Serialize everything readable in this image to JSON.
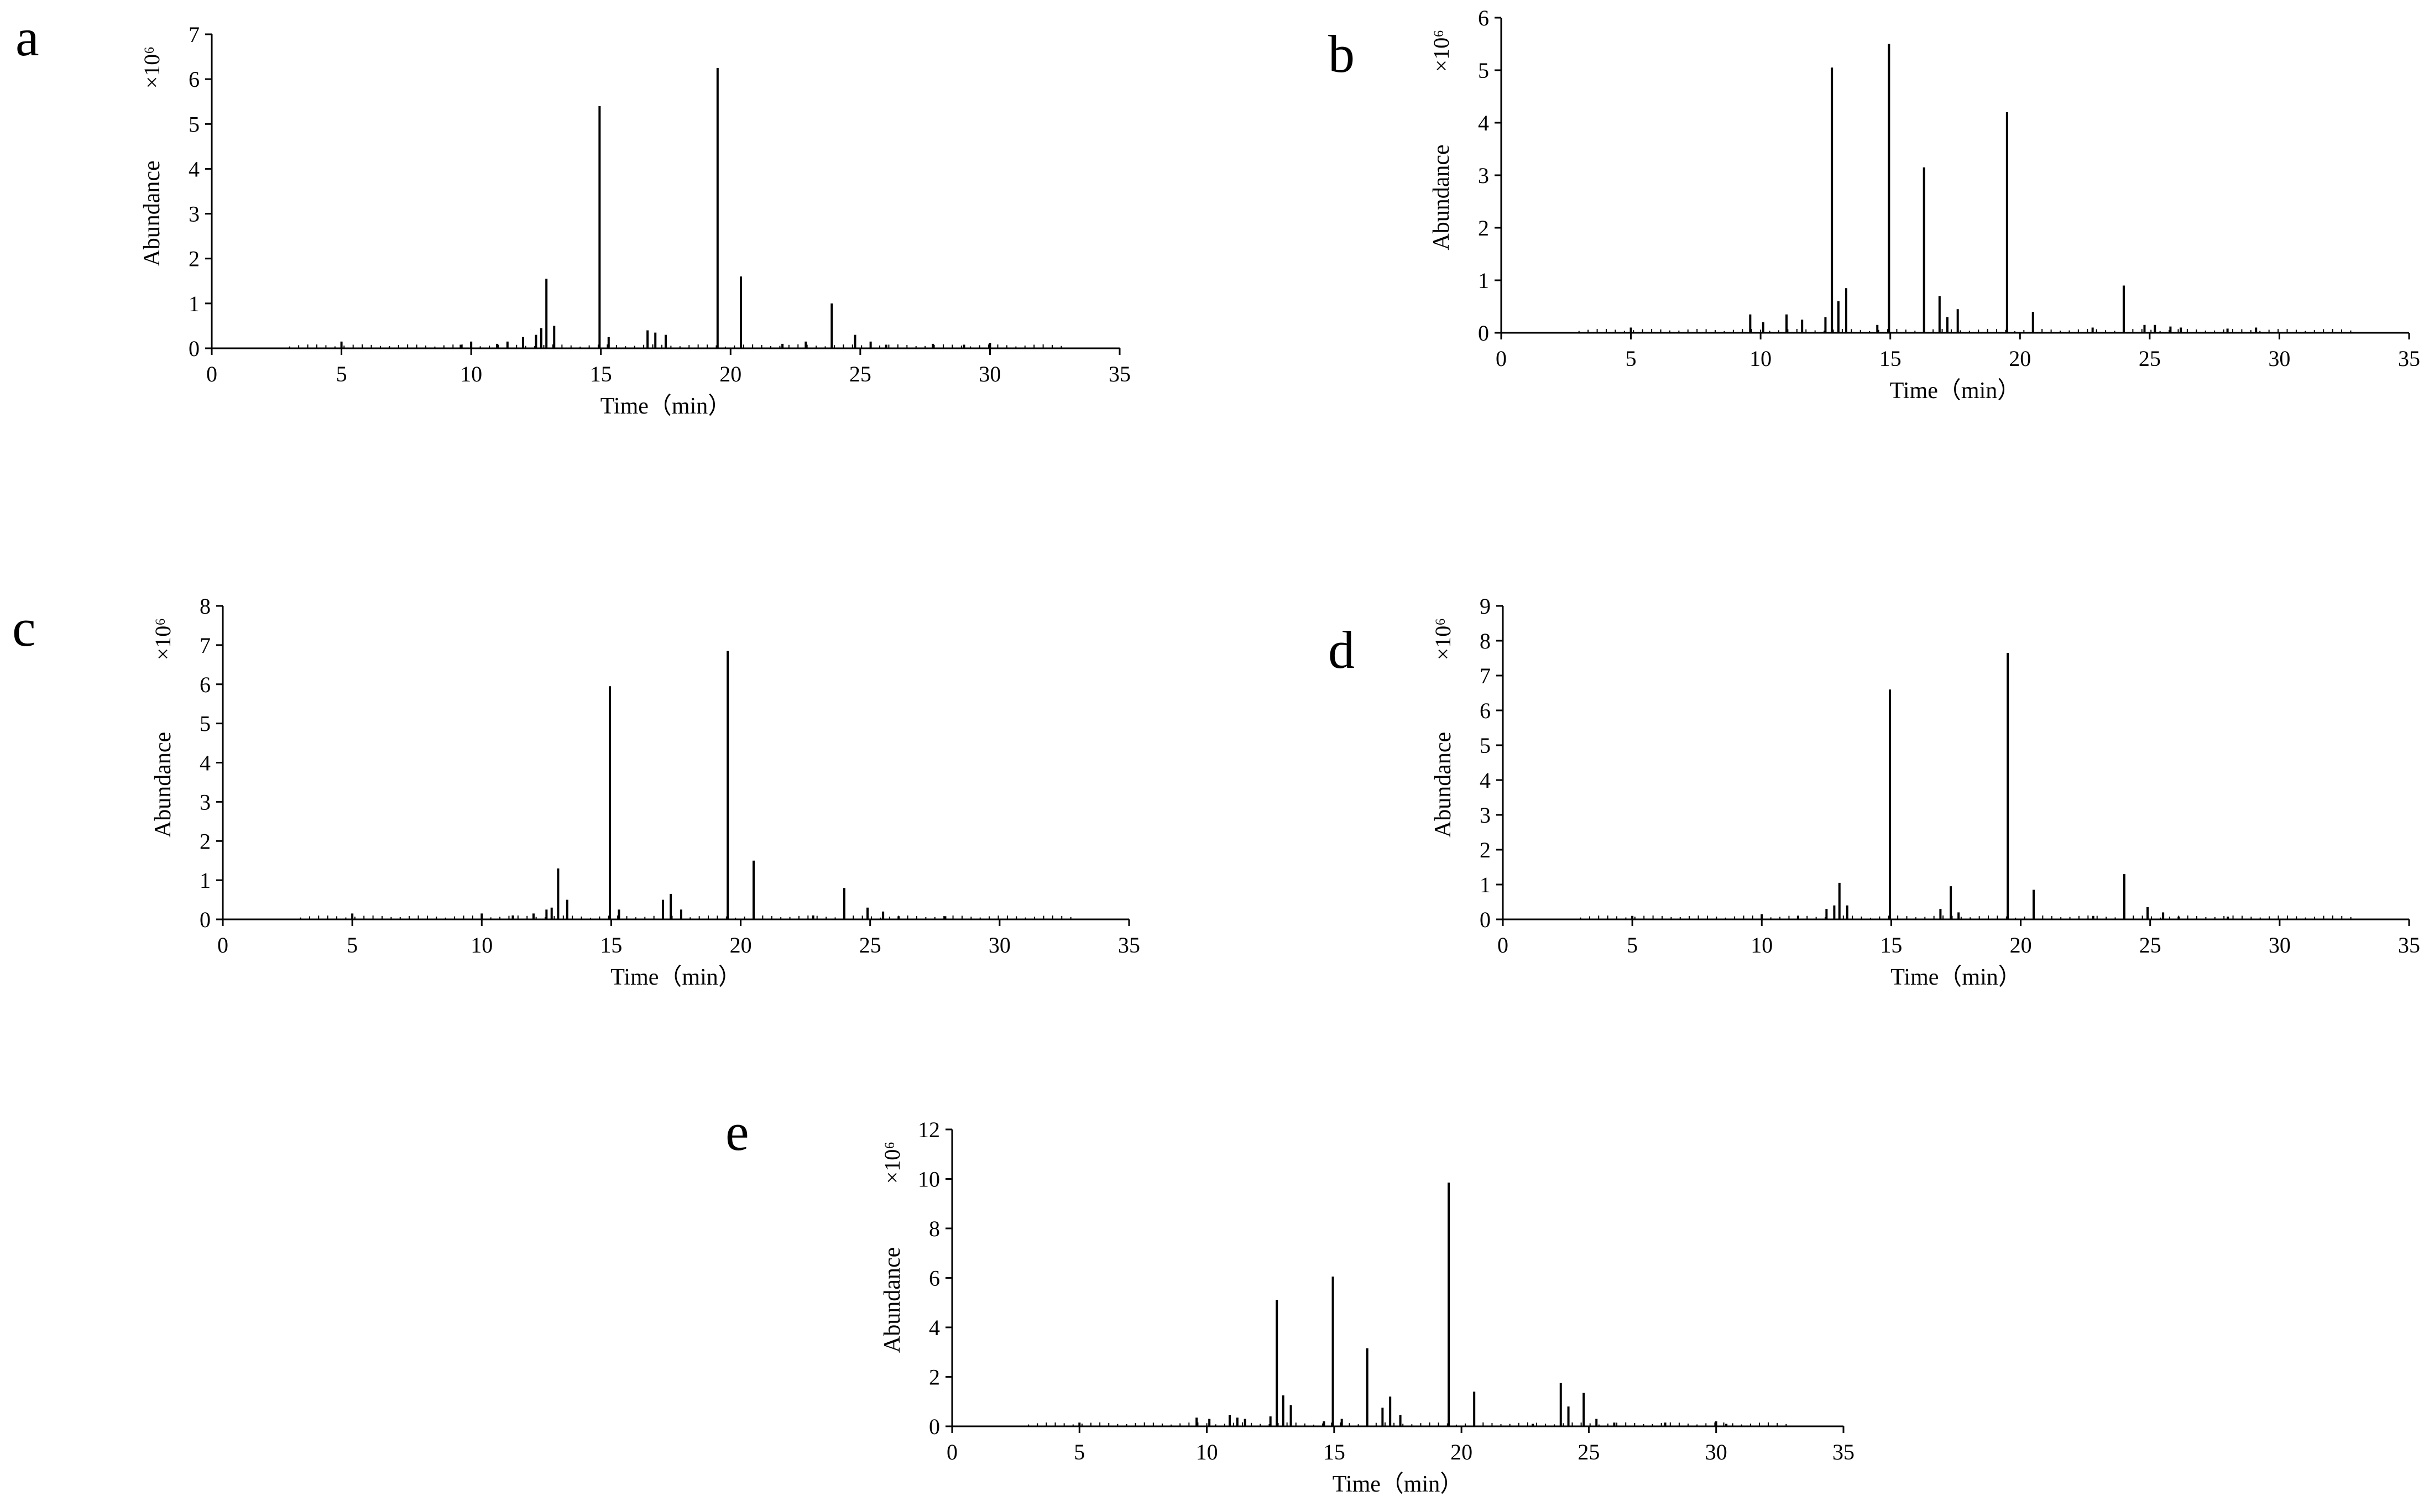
{
  "chart_data": [
    {
      "type": "line",
      "panel": "a",
      "xlabel": "Time（min）",
      "ylabel": "Abundance",
      "y_scale_label": "×10⁶",
      "xlim": [
        0,
        35
      ],
      "ylim": [
        0,
        7
      ],
      "x_ticks": [
        0,
        5,
        10,
        15,
        20,
        25,
        30,
        35
      ],
      "y_ticks": [
        0,
        1,
        2,
        3,
        4,
        5,
        6,
        7
      ],
      "peaks": [
        {
          "t": 5.0,
          "h": 0.15
        },
        {
          "t": 9.6,
          "h": 0.08
        },
        {
          "t": 10.0,
          "h": 0.15
        },
        {
          "t": 11.0,
          "h": 0.1
        },
        {
          "t": 11.4,
          "h": 0.15
        },
        {
          "t": 12.0,
          "h": 0.25
        },
        {
          "t": 12.5,
          "h": 0.3
        },
        {
          "t": 12.7,
          "h": 0.45
        },
        {
          "t": 12.9,
          "h": 1.55
        },
        {
          "t": 13.2,
          "h": 0.5
        },
        {
          "t": 14.95,
          "h": 5.4
        },
        {
          "t": 15.3,
          "h": 0.25
        },
        {
          "t": 16.8,
          "h": 0.4
        },
        {
          "t": 17.1,
          "h": 0.35
        },
        {
          "t": 17.5,
          "h": 0.3
        },
        {
          "t": 19.5,
          "h": 6.25
        },
        {
          "t": 20.4,
          "h": 1.6
        },
        {
          "t": 22.0,
          "h": 0.1
        },
        {
          "t": 22.9,
          "h": 0.15
        },
        {
          "t": 23.9,
          "h": 1.0
        },
        {
          "t": 24.8,
          "h": 0.3
        },
        {
          "t": 25.4,
          "h": 0.15
        },
        {
          "t": 26.0,
          "h": 0.08
        },
        {
          "t": 27.8,
          "h": 0.1
        },
        {
          "t": 29.0,
          "h": 0.08
        },
        {
          "t": 30.0,
          "h": 0.12
        }
      ]
    },
    {
      "type": "line",
      "panel": "b",
      "xlabel": "Time（min）",
      "ylabel": "Abundance",
      "y_scale_label": "×10⁶",
      "xlim": [
        0,
        35
      ],
      "ylim": [
        0,
        6
      ],
      "x_ticks": [
        0,
        5,
        10,
        15,
        20,
        25,
        30,
        35
      ],
      "y_ticks": [
        0,
        1,
        2,
        3,
        4,
        5,
        6
      ],
      "peaks": [
        {
          "t": 5.0,
          "h": 0.1
        },
        {
          "t": 9.6,
          "h": 0.35
        },
        {
          "t": 10.1,
          "h": 0.2
        },
        {
          "t": 11.0,
          "h": 0.35
        },
        {
          "t": 11.6,
          "h": 0.25
        },
        {
          "t": 12.5,
          "h": 0.3
        },
        {
          "t": 12.75,
          "h": 5.05
        },
        {
          "t": 13.0,
          "h": 0.6
        },
        {
          "t": 13.3,
          "h": 0.85
        },
        {
          "t": 14.5,
          "h": 0.15
        },
        {
          "t": 14.95,
          "h": 5.5
        },
        {
          "t": 16.3,
          "h": 3.15
        },
        {
          "t": 16.9,
          "h": 0.7
        },
        {
          "t": 17.2,
          "h": 0.3
        },
        {
          "t": 17.6,
          "h": 0.45
        },
        {
          "t": 19.5,
          "h": 4.2
        },
        {
          "t": 20.5,
          "h": 0.4
        },
        {
          "t": 22.8,
          "h": 0.1
        },
        {
          "t": 24.0,
          "h": 0.9
        },
        {
          "t": 24.8,
          "h": 0.15
        },
        {
          "t": 25.2,
          "h": 0.15
        },
        {
          "t": 25.8,
          "h": 0.12
        },
        {
          "t": 26.2,
          "h": 0.1
        },
        {
          "t": 28.0,
          "h": 0.08
        },
        {
          "t": 29.1,
          "h": 0.1
        }
      ]
    },
    {
      "type": "line",
      "panel": "c",
      "xlabel": "Time（min）",
      "ylabel": "Abundance",
      "y_scale_label": "×10⁶",
      "xlim": [
        0,
        35
      ],
      "ylim": [
        0,
        8
      ],
      "x_ticks": [
        0,
        5,
        10,
        15,
        20,
        25,
        30,
        35
      ],
      "y_ticks": [
        0,
        1,
        2,
        3,
        4,
        5,
        6,
        7,
        8
      ],
      "peaks": [
        {
          "t": 5.0,
          "h": 0.15
        },
        {
          "t": 10.0,
          "h": 0.15
        },
        {
          "t": 11.2,
          "h": 0.1
        },
        {
          "t": 12.0,
          "h": 0.15
        },
        {
          "t": 12.5,
          "h": 0.25
        },
        {
          "t": 12.7,
          "h": 0.3
        },
        {
          "t": 12.95,
          "h": 1.3
        },
        {
          "t": 13.3,
          "h": 0.5
        },
        {
          "t": 14.95,
          "h": 5.95
        },
        {
          "t": 15.3,
          "h": 0.25
        },
        {
          "t": 17.0,
          "h": 0.5
        },
        {
          "t": 17.3,
          "h": 0.65
        },
        {
          "t": 17.7,
          "h": 0.25
        },
        {
          "t": 19.5,
          "h": 6.85
        },
        {
          "t": 20.5,
          "h": 1.5
        },
        {
          "t": 22.8,
          "h": 0.1
        },
        {
          "t": 24.0,
          "h": 0.8
        },
        {
          "t": 24.9,
          "h": 0.3
        },
        {
          "t": 25.5,
          "h": 0.2
        },
        {
          "t": 26.1,
          "h": 0.08
        },
        {
          "t": 27.9,
          "h": 0.08
        }
      ]
    },
    {
      "type": "line",
      "panel": "d",
      "xlabel": "Time（min）",
      "ylabel": "Abundance",
      "y_scale_label": "×10⁶",
      "xlim": [
        0,
        35
      ],
      "ylim": [
        0,
        9
      ],
      "x_ticks": [
        0,
        5,
        10,
        15,
        20,
        25,
        30,
        35
      ],
      "y_ticks": [
        0,
        1,
        2,
        3,
        4,
        5,
        6,
        7,
        8,
        9
      ],
      "peaks": [
        {
          "t": 5.0,
          "h": 0.1
        },
        {
          "t": 10.0,
          "h": 0.15
        },
        {
          "t": 11.4,
          "h": 0.1
        },
        {
          "t": 12.5,
          "h": 0.3
        },
        {
          "t": 12.8,
          "h": 0.4
        },
        {
          "t": 13.0,
          "h": 1.05
        },
        {
          "t": 13.3,
          "h": 0.4
        },
        {
          "t": 14.95,
          "h": 6.6
        },
        {
          "t": 16.9,
          "h": 0.3
        },
        {
          "t": 17.3,
          "h": 0.95
        },
        {
          "t": 17.6,
          "h": 0.2
        },
        {
          "t": 19.5,
          "h": 7.65
        },
        {
          "t": 20.5,
          "h": 0.85
        },
        {
          "t": 22.8,
          "h": 0.1
        },
        {
          "t": 24.0,
          "h": 1.3
        },
        {
          "t": 24.9,
          "h": 0.35
        },
        {
          "t": 25.5,
          "h": 0.2
        },
        {
          "t": 26.1,
          "h": 0.08
        },
        {
          "t": 28.0,
          "h": 0.08
        }
      ]
    },
    {
      "type": "line",
      "panel": "e",
      "xlabel": "Time（min）",
      "ylabel": "Abundance",
      "y_scale_label": "×10⁶",
      "xlim": [
        0,
        35
      ],
      "ylim": [
        0,
        12
      ],
      "x_ticks": [
        0,
        5,
        10,
        15,
        20,
        25,
        30,
        35
      ],
      "y_ticks": [
        0,
        2,
        4,
        6,
        8,
        10,
        12
      ],
      "peaks": [
        {
          "t": 5.0,
          "h": 0.15
        },
        {
          "t": 9.6,
          "h": 0.35
        },
        {
          "t": 10.1,
          "h": 0.3
        },
        {
          "t": 10.9,
          "h": 0.45
        },
        {
          "t": 11.2,
          "h": 0.35
        },
        {
          "t": 11.5,
          "h": 0.3
        },
        {
          "t": 12.5,
          "h": 0.4
        },
        {
          "t": 12.75,
          "h": 5.1
        },
        {
          "t": 13.0,
          "h": 1.25
        },
        {
          "t": 13.3,
          "h": 0.85
        },
        {
          "t": 14.6,
          "h": 0.2
        },
        {
          "t": 14.95,
          "h": 6.05
        },
        {
          "t": 15.3,
          "h": 0.3
        },
        {
          "t": 16.3,
          "h": 3.15
        },
        {
          "t": 16.9,
          "h": 0.75
        },
        {
          "t": 17.2,
          "h": 1.2
        },
        {
          "t": 17.6,
          "h": 0.45
        },
        {
          "t": 19.5,
          "h": 9.85
        },
        {
          "t": 20.5,
          "h": 1.4
        },
        {
          "t": 22.8,
          "h": 0.1
        },
        {
          "t": 23.9,
          "h": 1.75
        },
        {
          "t": 24.2,
          "h": 0.8
        },
        {
          "t": 24.8,
          "h": 1.35
        },
        {
          "t": 25.3,
          "h": 0.3
        },
        {
          "t": 26.0,
          "h": 0.15
        },
        {
          "t": 28.0,
          "h": 0.15
        },
        {
          "t": 30.0,
          "h": 0.2
        },
        {
          "t": 30.4,
          "h": 0.1
        }
      ]
    }
  ]
}
